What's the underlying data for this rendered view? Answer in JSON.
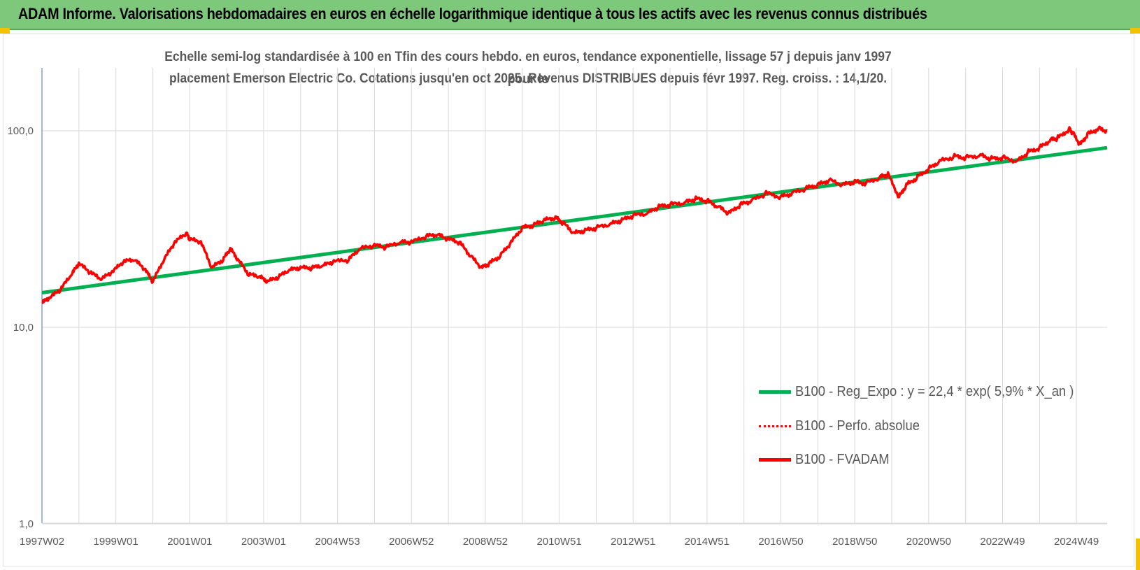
{
  "header": {
    "title": "ADAM Informe. Valorisations hebdomadaires en euros en échelle logarithmique identique à tous les actifs avec les revenus connus distribués"
  },
  "colors": {
    "banner": "#7dc87a",
    "trend": "#00b050",
    "series": "#ff0000",
    "grid": "#d9d9d9",
    "accent_corner": "#f2c200"
  },
  "chart_data": {
    "type": "line",
    "title_line1": "Echelle semi-log standardisée à 100 en Tfin des cours hebdo. en euros, tendance exponentielle, lissage 57 j depuis janv 1997 pour le",
    "title_line2": "placement Emerson Electric Co. Cotations jusqu'en oct 2025. Revenus DISTRIBUES depuis févr 1997. Reg. croiss. : 14,1/20.",
    "y_scale": "log",
    "ylim": [
      1,
      200
    ],
    "y_ticks": [
      {
        "value": 1,
        "label": "1,0"
      },
      {
        "value": 10,
        "label": "10,0"
      },
      {
        "value": 100,
        "label": "100,0"
      }
    ],
    "x_range": [
      1997.0,
      2025.83
    ],
    "x_ticks": [
      {
        "label": "1997W02",
        "year": 1997.0
      },
      {
        "label": "1999W01",
        "year": 1999.0
      },
      {
        "label": "2001W01",
        "year": 2001.0
      },
      {
        "label": "2003W01",
        "year": 2003.0
      },
      {
        "label": "2004W53",
        "year": 2005.0
      },
      {
        "label": "2006W52",
        "year": 2007.0
      },
      {
        "label": "2008W52",
        "year": 2009.0
      },
      {
        "label": "2010W51",
        "year": 2011.0
      },
      {
        "label": "2012W51",
        "year": 2013.0
      },
      {
        "label": "2014W51",
        "year": 2015.0
      },
      {
        "label": "2016W50",
        "year": 2017.0
      },
      {
        "label": "2018W50",
        "year": 2019.0
      },
      {
        "label": "2020W50",
        "year": 2021.0
      },
      {
        "label": "2022W49",
        "year": 2023.0
      },
      {
        "label": "2024W49",
        "year": 2025.0
      }
    ],
    "grid": true,
    "legend_position": "right",
    "series": [
      {
        "name": "B100 - Reg_Expo : y = 22,4 * exp( 5,9% *  X_an )",
        "style": "solid",
        "color": "#00b050",
        "x": [
          1997.0,
          2025.83
        ],
        "y": [
          15.0,
          82.0
        ]
      },
      {
        "name": "B100 - Perfo. absolue",
        "style": "dotted",
        "color": "#ff0000",
        "x": [],
        "y": []
      },
      {
        "name": "B100 - FVADAM",
        "style": "solid",
        "color": "#ff0000",
        "x": [
          1997.0,
          1997.2,
          1997.5,
          1997.8,
          1998.0,
          1998.3,
          1998.6,
          1998.9,
          1999.2,
          1999.5,
          1999.8,
          2000.0,
          2000.3,
          2000.6,
          2000.9,
          2001.0,
          2001.3,
          2001.6,
          2001.9,
          2002.1,
          2002.3,
          2002.6,
          2002.9,
          2003.1,
          2003.4,
          2003.7,
          2004.0,
          2004.3,
          2004.6,
          2004.9,
          2005.3,
          2005.6,
          2006.0,
          2006.3,
          2006.7,
          2007.0,
          2007.4,
          2007.7,
          2008.0,
          2008.3,
          2008.6,
          2008.9,
          2009.1,
          2009.4,
          2009.7,
          2010.0,
          2010.3,
          2010.6,
          2010.9,
          2011.1,
          2011.4,
          2011.7,
          2012.0,
          2012.4,
          2012.7,
          2013.0,
          2013.4,
          2013.7,
          2014.0,
          2014.4,
          2014.7,
          2015.0,
          2015.3,
          2015.6,
          2015.9,
          2016.2,
          2016.6,
          2017.0,
          2017.3,
          2017.7,
          2018.0,
          2018.3,
          2018.7,
          2019.0,
          2019.3,
          2019.7,
          2019.9,
          2020.2,
          2020.4,
          2020.7,
          2021.0,
          2021.3,
          2021.7,
          2022.0,
          2022.4,
          2022.7,
          2023.0,
          2023.4,
          2023.7,
          2024.0,
          2024.3,
          2024.5,
          2024.8,
          2024.9,
          2025.1,
          2025.3,
          2025.6,
          2025.83
        ],
        "y": [
          13.3,
          14.0,
          15.5,
          18.5,
          21.0,
          19.0,
          17.5,
          19.0,
          21.5,
          22.0,
          19.5,
          17.0,
          22.0,
          27.0,
          30.0,
          28.0,
          27.0,
          20.0,
          22.0,
          25.0,
          22.0,
          18.5,
          18.0,
          17.0,
          18.0,
          19.5,
          20.0,
          20.0,
          20.5,
          21.5,
          22.0,
          25.0,
          26.0,
          25.5,
          27.0,
          27.0,
          29.0,
          29.5,
          28.0,
          27.0,
          23.0,
          20.0,
          21.0,
          23.0,
          27.0,
          32.0,
          33.0,
          35.0,
          36.0,
          34.0,
          30.0,
          31.0,
          32.0,
          33.5,
          35.0,
          37.0,
          38.0,
          41.0,
          42.0,
          43.0,
          45.0,
          44.0,
          41.0,
          38.0,
          42.0,
          44.0,
          48.0,
          46.0,
          48.0,
          51.0,
          53.0,
          56.0,
          53.0,
          55.0,
          54.0,
          58.0,
          60.0,
          46.0,
          53.0,
          58.0,
          64.0,
          70.0,
          74.0,
          73.0,
          75.0,
          72.0,
          73.0,
          70.0,
          78.0,
          82.0,
          90.0,
          92.0,
          102.0,
          98.0,
          85.0,
          96.0,
          103.0,
          100.0
        ]
      }
    ]
  }
}
